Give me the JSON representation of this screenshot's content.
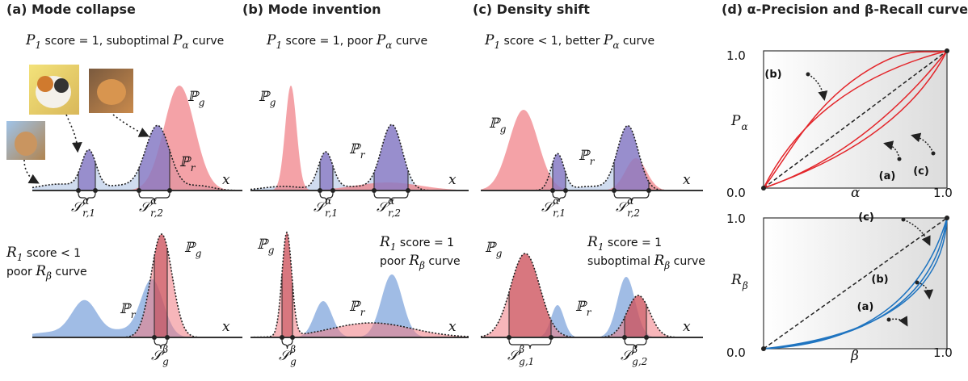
{
  "panels": [
    {
      "title": "(a) Mode collapse",
      "precision_caption": [
        [
          {
            "math": "P",
            "sub": "1"
          },
          {
            "text": " score = 1, suboptimal "
          },
          {
            "math": "P",
            "sub": "α"
          },
          {
            "text": " curve"
          }
        ]
      ],
      "recall_caption": [
        [
          {
            "math": "R",
            "sub": "1"
          },
          {
            "text": " score < 1"
          }
        ],
        [
          {
            "text": "poor "
          },
          {
            "math": "R",
            "sub": "β"
          },
          {
            "text": " curve"
          }
        ]
      ],
      "top_labels": [
        {
          "math": "ℙ",
          "sub": "g"
        },
        {
          "math": "ℙ",
          "sub": "r"
        },
        {
          "math": "x"
        },
        {
          "math": "𝒮",
          "sup": "α",
          "sub": "r,1"
        },
        {
          "math": "𝒮",
          "sup": "α",
          "sub": "r,2"
        }
      ],
      "bottom_labels": [
        {
          "math": "ℙ",
          "sub": "g"
        },
        {
          "math": "ℙ",
          "sub": "r"
        },
        {
          "math": "x"
        },
        {
          "math": "𝒮",
          "sup": "β",
          "sub": "g"
        }
      ]
    },
    {
      "title": "(b) Mode invention",
      "precision_caption": [
        [
          {
            "math": "P",
            "sub": "1"
          },
          {
            "text": " score = 1, poor "
          },
          {
            "math": "P",
            "sub": "α"
          },
          {
            "text": " curve"
          }
        ]
      ],
      "recall_caption": [
        [
          {
            "math": "R",
            "sub": "1"
          },
          {
            "text": " score = 1"
          }
        ],
        [
          {
            "text": "poor "
          },
          {
            "math": "R",
            "sub": "β"
          },
          {
            "text": " curve"
          }
        ]
      ],
      "top_labels": [
        {
          "math": "ℙ",
          "sub": "g"
        },
        {
          "math": "ℙ",
          "sub": "r"
        },
        {
          "math": "x"
        },
        {
          "math": "𝒮",
          "sup": "α",
          "sub": "r,1"
        },
        {
          "math": "𝒮",
          "sup": "α",
          "sub": "r,2"
        }
      ],
      "bottom_labels": [
        {
          "math": "ℙ",
          "sub": "g"
        },
        {
          "math": "ℙ",
          "sub": "r"
        },
        {
          "math": "x"
        },
        {
          "math": "𝒮",
          "sup": "β",
          "sub": "g"
        }
      ]
    },
    {
      "title": "(c) Density shift",
      "precision_caption": [
        [
          {
            "math": "P",
            "sub": "1"
          },
          {
            "text": " score < 1, better "
          },
          {
            "math": "P",
            "sub": "α"
          },
          {
            "text": " curve"
          }
        ]
      ],
      "recall_caption": [
        [
          {
            "math": "R",
            "sub": "1"
          },
          {
            "text": " score = 1"
          }
        ],
        [
          {
            "text": "suboptimal "
          },
          {
            "math": "R",
            "sub": "β"
          },
          {
            "text": " curve"
          }
        ]
      ],
      "top_labels": [
        {
          "math": "ℙ",
          "sub": "g"
        },
        {
          "math": "ℙ",
          "sub": "r"
        },
        {
          "math": "x"
        },
        {
          "math": "𝒮",
          "sup": "α",
          "sub": "r,1"
        },
        {
          "math": "𝒮",
          "sup": "α",
          "sub": "r,2"
        }
      ],
      "bottom_labels": [
        {
          "math": "ℙ",
          "sub": "g"
        },
        {
          "math": "ℙ",
          "sub": "r"
        },
        {
          "math": "x"
        },
        {
          "math": "𝒮",
          "sup": "β",
          "sub": "g,1"
        },
        {
          "math": "𝒮",
          "sup": "β",
          "sub": "g,2"
        }
      ]
    }
  ],
  "curves": {
    "title": "(d) α-Precision and β-Recall curves",
    "precision": {
      "y_label": {
        "math": "P",
        "sub": "α"
      },
      "x_label": {
        "math": "α"
      },
      "y_max": "1.0",
      "origin": "0.0",
      "x_max": "1.0",
      "annotations": [
        "(a)",
        "(b)",
        "(c)"
      ]
    },
    "recall": {
      "y_label": {
        "math": "R",
        "sub": "β"
      },
      "x_label": {
        "math": "β"
      },
      "y_max": "1.0",
      "origin": "0.0",
      "x_max": "1.0",
      "annotations": [
        "(a)",
        "(b)",
        "(c)"
      ]
    }
  }
}
